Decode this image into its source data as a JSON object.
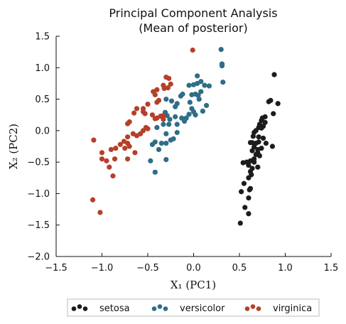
{
  "chart_data": {
    "type": "scatter",
    "title": [
      "Principal Component Analysis",
      "(Mean of posterior)"
    ],
    "xlabel": "X₁ (PC1)",
    "ylabel": "X₂ (PC2)",
    "xlim": [
      -1.5,
      1.5
    ],
    "ylim": [
      -2.0,
      1.5
    ],
    "xticks": [
      -1.5,
      -1.0,
      -0.5,
      0.0,
      0.5,
      1.0,
      1.5
    ],
    "xtick_labels": [
      "−1.5",
      "−1.0",
      "−0.5",
      "0.0",
      "0.5",
      "1.0",
      "1.5"
    ],
    "yticks": [
      -2.0,
      -1.5,
      -1.0,
      -0.5,
      0.0,
      0.5,
      1.0,
      1.5
    ],
    "ytick_labels": [
      "−2.0",
      "−1.5",
      "−1.0",
      "−0.5",
      "0.0",
      "0.5",
      "1.0",
      "1.5"
    ],
    "grid": false,
    "legend_placement": "bottom-center",
    "series": [
      {
        "name": "setosa",
        "color": "#1c1c1c",
        "points": [
          [
            0.88,
            0.89
          ],
          [
            0.92,
            0.43
          ],
          [
            0.84,
            0.48
          ],
          [
            0.82,
            0.46
          ],
          [
            0.87,
            0.27
          ],
          [
            0.78,
            0.22
          ],
          [
            0.75,
            0.2
          ],
          [
            0.74,
            0.16
          ],
          [
            0.72,
            0.1
          ],
          [
            0.71,
            0.05
          ],
          [
            0.74,
            0.04
          ],
          [
            0.78,
            0.13
          ],
          [
            0.76,
            0.07
          ],
          [
            0.68,
            0.0
          ],
          [
            0.66,
            -0.03
          ],
          [
            0.65,
            -0.09
          ],
          [
            0.71,
            -0.1
          ],
          [
            0.76,
            -0.12
          ],
          [
            0.71,
            -0.18
          ],
          [
            0.68,
            -0.2
          ],
          [
            0.64,
            -0.19
          ],
          [
            0.62,
            -0.19
          ],
          [
            0.79,
            -0.2
          ],
          [
            0.86,
            -0.25
          ],
          [
            0.66,
            -0.26
          ],
          [
            0.7,
            -0.3
          ],
          [
            0.64,
            -0.32
          ],
          [
            0.74,
            -0.28
          ],
          [
            0.7,
            -0.35
          ],
          [
            0.72,
            -0.4
          ],
          [
            0.68,
            -0.38
          ],
          [
            0.66,
            -0.45
          ],
          [
            0.62,
            -0.48
          ],
          [
            0.58,
            -0.5
          ],
          [
            0.54,
            -0.51
          ],
          [
            0.6,
            -0.55
          ],
          [
            0.66,
            -0.5
          ],
          [
            0.64,
            -0.6
          ],
          [
            0.62,
            -0.65
          ],
          [
            0.63,
            -0.7
          ],
          [
            0.6,
            -0.75
          ],
          [
            0.55,
            -0.84
          ],
          [
            0.62,
            -0.92
          ],
          [
            0.61,
            -0.94
          ],
          [
            0.52,
            -0.97
          ],
          [
            0.6,
            -1.07
          ],
          [
            0.56,
            -1.22
          ],
          [
            0.6,
            -1.32
          ],
          [
            0.51,
            -1.47
          ],
          [
            0.7,
            -0.58
          ]
        ]
      },
      {
        "name": "versicolor",
        "color": "#2e6e86",
        "points": [
          [
            0.3,
            1.29
          ],
          [
            0.31,
            1.06
          ],
          [
            0.31,
            1.03
          ],
          [
            0.32,
            0.77
          ],
          [
            0.04,
            0.87
          ],
          [
            0.04,
            0.75
          ],
          [
            0.08,
            0.78
          ],
          [
            0.0,
            0.73
          ],
          [
            0.12,
            0.72
          ],
          [
            0.17,
            0.71
          ],
          [
            -0.05,
            0.72
          ],
          [
            0.02,
            0.58
          ],
          [
            -0.02,
            0.57
          ],
          [
            -0.12,
            0.58
          ],
          [
            -0.14,
            0.55
          ],
          [
            0.08,
            0.62
          ],
          [
            0.05,
            0.56
          ],
          [
            0.06,
            0.5
          ],
          [
            -0.04,
            0.45
          ],
          [
            0.14,
            0.4
          ],
          [
            -0.24,
            0.47
          ],
          [
            -0.18,
            0.43
          ],
          [
            -0.2,
            0.38
          ],
          [
            -0.3,
            0.5
          ],
          [
            -0.02,
            0.35
          ],
          [
            0.0,
            0.3
          ],
          [
            0.02,
            0.25
          ],
          [
            0.1,
            0.31
          ],
          [
            -0.05,
            0.26
          ],
          [
            -0.08,
            0.2
          ],
          [
            -0.1,
            0.15
          ],
          [
            -0.13,
            0.2
          ],
          [
            -0.2,
            0.22
          ],
          [
            -0.26,
            0.18
          ],
          [
            -0.29,
            0.24
          ],
          [
            -0.31,
            0.29
          ],
          [
            -0.27,
            0.1
          ],
          [
            -0.18,
            0.1
          ],
          [
            -0.33,
            0.1
          ],
          [
            -0.4,
            0.05
          ],
          [
            -0.3,
            -0.05
          ],
          [
            -0.25,
            -0.15
          ],
          [
            -0.22,
            -0.13
          ],
          [
            -0.3,
            -0.2
          ],
          [
            -0.35,
            -0.2
          ],
          [
            -0.42,
            -0.18
          ],
          [
            -0.45,
            -0.22
          ],
          [
            -0.38,
            -0.3
          ],
          [
            -0.47,
            -0.48
          ],
          [
            -0.3,
            -0.46
          ],
          [
            -0.42,
            -0.66
          ],
          [
            -0.18,
            -0.03
          ]
        ]
      },
      {
        "name": "virginica",
        "color": "#b5402a",
        "points": [
          [
            -0.01,
            1.28
          ],
          [
            -0.3,
            0.85
          ],
          [
            -0.27,
            0.83
          ],
          [
            -0.25,
            0.74
          ],
          [
            -0.33,
            0.72
          ],
          [
            -0.4,
            0.65
          ],
          [
            -0.32,
            0.67
          ],
          [
            -0.28,
            0.68
          ],
          [
            -0.42,
            0.57
          ],
          [
            -0.44,
            0.62
          ],
          [
            -0.38,
            0.48
          ],
          [
            -0.4,
            0.45
          ],
          [
            -0.5,
            0.42
          ],
          [
            -0.55,
            0.35
          ],
          [
            -0.62,
            0.35
          ],
          [
            -0.55,
            0.3
          ],
          [
            -0.53,
            0.27
          ],
          [
            -0.65,
            0.28
          ],
          [
            -0.33,
            0.24
          ],
          [
            -0.36,
            0.23
          ],
          [
            -0.4,
            0.2
          ],
          [
            -0.45,
            0.25
          ],
          [
            -0.33,
            0.18
          ],
          [
            -0.42,
            0.19
          ],
          [
            -0.7,
            0.14
          ],
          [
            -0.72,
            0.11
          ],
          [
            -0.52,
            0.05
          ],
          [
            -0.5,
            0.03
          ],
          [
            -0.55,
            0.0
          ],
          [
            -0.58,
            -0.05
          ],
          [
            -0.62,
            -0.08
          ],
          [
            -0.66,
            -0.05
          ],
          [
            -0.72,
            -0.1
          ],
          [
            -0.76,
            -0.17
          ],
          [
            -0.72,
            -0.2
          ],
          [
            -0.8,
            -0.22
          ],
          [
            -0.7,
            -0.25
          ],
          [
            -0.75,
            -0.28
          ],
          [
            -0.85,
            -0.28
          ],
          [
            -0.9,
            -0.3
          ],
          [
            -0.64,
            -0.35
          ],
          [
            -0.72,
            -0.45
          ],
          [
            -1.0,
            -0.35
          ],
          [
            -1.09,
            -0.15
          ],
          [
            -0.86,
            -0.45
          ],
          [
            -0.95,
            -0.48
          ],
          [
            -1.0,
            -0.45
          ],
          [
            -0.92,
            -0.58
          ],
          [
            -0.88,
            -0.72
          ],
          [
            -1.1,
            -1.1
          ],
          [
            -1.02,
            -1.3
          ]
        ]
      }
    ]
  }
}
